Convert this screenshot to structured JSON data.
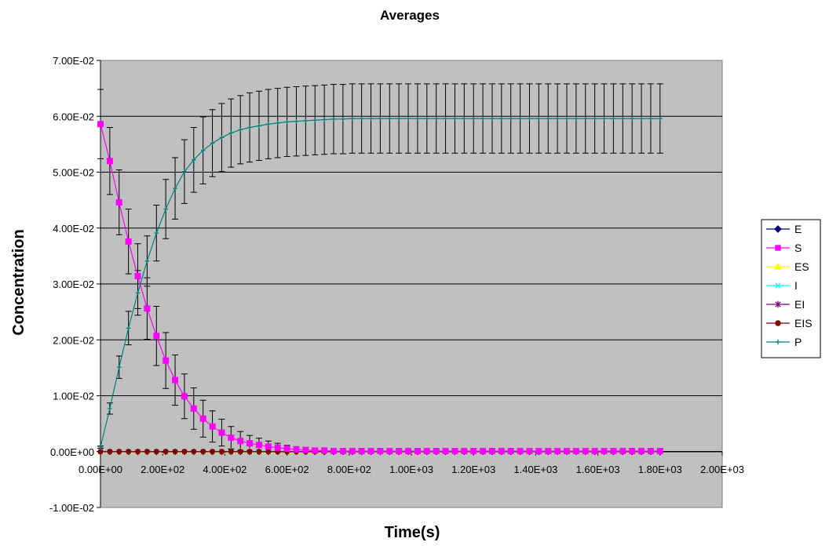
{
  "chart_data": {
    "type": "line",
    "title": "Averages",
    "xlabel": "Time(s)",
    "ylabel": "Concentration",
    "xlim": [
      0,
      2000
    ],
    "ylim": [
      -0.01,
      0.07
    ],
    "x_ticks": [
      "0.00E+00",
      "2.00E+02",
      "4.00E+02",
      "6.00E+02",
      "8.00E+02",
      "1.00E+03",
      "1.20E+03",
      "1.40E+03",
      "1.60E+03",
      "1.80E+03",
      "2.00E+03"
    ],
    "y_ticks": [
      "-1.00E-02",
      "0.00E+00",
      "1.00E-02",
      "2.00E-02",
      "3.00E-02",
      "4.00E-02",
      "5.00E-02",
      "6.00E-02",
      "7.00E-02"
    ],
    "grid": "horizontal major",
    "plot_background": "#c0c0c0",
    "legend_position": "right",
    "x_step": 30,
    "n_points": 61,
    "series": [
      {
        "name": "E",
        "color": "#000080",
        "marker": "diamond",
        "values": [
          0
        ]
      },
      {
        "name": "S",
        "color": "#ff00ff",
        "marker": "square",
        "values": [
          0.0586,
          0.052,
          0.0446,
          0.0376,
          0.0314,
          0.0256,
          0.0207,
          0.0163,
          0.0128,
          0.0099,
          0.0077,
          0.0059,
          0.0045,
          0.0034,
          0.0025,
          0.0019,
          0.0015,
          0.0012,
          0.0009,
          0.0007,
          0.0005,
          0.0004,
          0.0003,
          0.0002,
          0.0002,
          0.0001,
          0.0001
        ],
        "error": [
          0.0062,
          0.006,
          0.0058,
          0.0058,
          0.0058,
          0.0055,
          0.0053,
          0.005,
          0.0045,
          0.004,
          0.0037,
          0.0033,
          0.0028,
          0.0024,
          0.002,
          0.0017,
          0.0014,
          0.0012,
          0.001,
          0.0008,
          0.0006,
          0.0005,
          0.0004,
          0.0003,
          0.0002,
          0.0002,
          0.0001
        ]
      },
      {
        "name": "ES",
        "color": "#ffff00",
        "marker": "triangle",
        "values": [
          0
        ]
      },
      {
        "name": "I",
        "color": "#00ffff",
        "marker": "x",
        "values": [
          0
        ]
      },
      {
        "name": "EI",
        "color": "#800080",
        "marker": "star",
        "values": [
          0
        ]
      },
      {
        "name": "EIS",
        "color": "#800000",
        "marker": "circle",
        "values": [
          0
        ]
      },
      {
        "name": "P",
        "color": "#008080",
        "marker": "plus",
        "values": [
          0.0008,
          0.0077,
          0.0151,
          0.0221,
          0.0284,
          0.0341,
          0.0391,
          0.0434,
          0.0471,
          0.0501,
          0.0522,
          0.0539,
          0.0552,
          0.0562,
          0.057,
          0.0576,
          0.058,
          0.0583,
          0.0586,
          0.0588,
          0.059,
          0.0591,
          0.0592,
          0.0593,
          0.0594,
          0.0595,
          0.0595,
          0.0596
        ],
        "error": [
          0.0002,
          0.001,
          0.002,
          0.003,
          0.004,
          0.0045,
          0.005,
          0.0053,
          0.0055,
          0.0057,
          0.0058,
          0.006,
          0.006,
          0.0061,
          0.0061,
          0.0061,
          0.0062,
          0.0062,
          0.0062,
          0.0062,
          0.0062,
          0.0062,
          0.0062,
          0.0062,
          0.0062,
          0.0062,
          0.0062,
          0.0062
        ]
      }
    ]
  }
}
